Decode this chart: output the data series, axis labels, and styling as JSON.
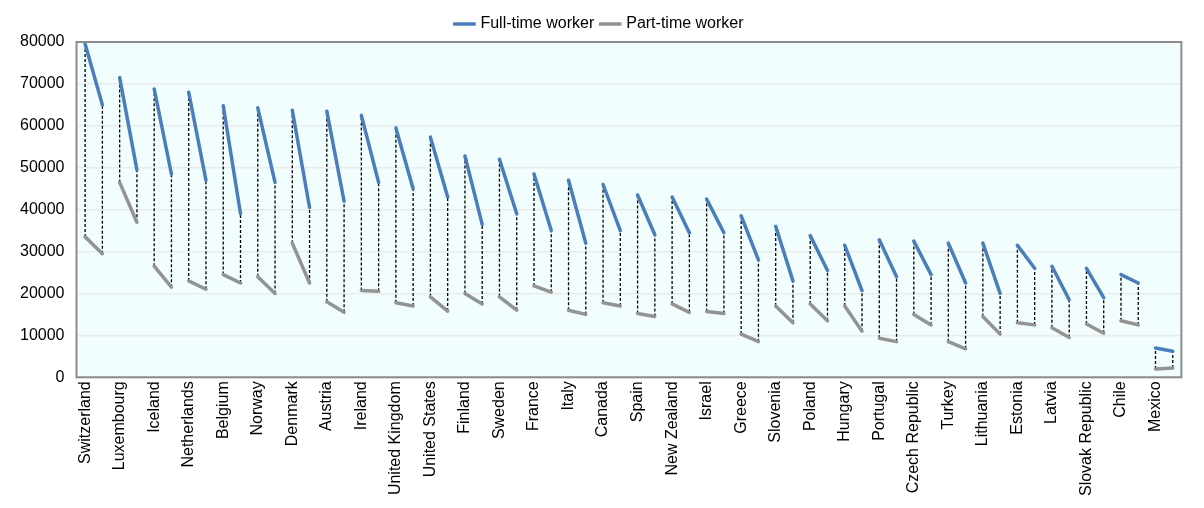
{
  "chart_data": {
    "type": "line",
    "categories": [
      "Switzerland",
      null,
      "Luxembourg",
      null,
      "Iceland",
      null,
      "Netherlands",
      null,
      "Belgium",
      null,
      "Norway",
      null,
      "Denmark",
      null,
      "Austria",
      null,
      "Ireland",
      null,
      "United Kingdom",
      null,
      "United States",
      null,
      "Finland",
      null,
      "Sweden",
      null,
      "France",
      null,
      "Italy",
      null,
      "Canada",
      null,
      "Spain",
      null,
      "New Zealand",
      null,
      "Israel",
      null,
      "Greece",
      null,
      "Slovenia",
      null,
      "Poland",
      null,
      "Hungary",
      null,
      "Portugal",
      null,
      "Czech Republic",
      null,
      "Turkey",
      null,
      "Lithuania",
      null,
      "Estonia",
      null,
      "Latvia",
      null,
      "Slovak Republic",
      null,
      "Chile",
      null,
      "Mexico",
      null
    ],
    "series": [
      {
        "name": "Full-time worker",
        "color": "#4a7ebb",
        "values": [
          79500,
          65000,
          71500,
          49500,
          68800,
          48500,
          68000,
          47000,
          64800,
          39000,
          64300,
          46500,
          63700,
          40500,
          63500,
          42000,
          62500,
          46500,
          59500,
          45000,
          57300,
          43000,
          52800,
          36500,
          52000,
          39000,
          48500,
          35000,
          47000,
          32000,
          46000,
          35000,
          43500,
          34000,
          43000,
          34500,
          42500,
          34500,
          38500,
          28000,
          36000,
          23000,
          33800,
          25500,
          31500,
          20700,
          32800,
          24000,
          32500,
          24500,
          32000,
          22500,
          32000,
          20000,
          31500,
          26000,
          26500,
          18500,
          26000,
          19000,
          24500,
          22500,
          7000,
          6200
        ],
        "errors": [
          [
            33500,
            79500
          ],
          [
            29500,
            65000
          ],
          [
            46500,
            71500
          ],
          [
            37000,
            49500
          ],
          [
            26500,
            68800
          ],
          [
            21500,
            48500
          ],
          [
            23000,
            68000
          ],
          [
            21000,
            47000
          ],
          [
            24500,
            64800
          ],
          [
            22500,
            39000
          ],
          [
            24000,
            64300
          ],
          [
            20000,
            46500
          ],
          [
            32000,
            63700
          ],
          [
            22500,
            40500
          ],
          [
            18000,
            63500
          ],
          [
            15500,
            42000
          ],
          [
            20700,
            62500
          ],
          [
            20500,
            46500
          ],
          [
            17800,
            59500
          ],
          [
            17000,
            45000
          ],
          [
            19200,
            57300
          ],
          [
            15800,
            43000
          ],
          [
            20000,
            52800
          ],
          [
            17500,
            36500
          ],
          [
            19200,
            52000
          ],
          [
            16000,
            39000
          ],
          [
            21800,
            48500
          ],
          [
            20300,
            35000
          ],
          [
            16000,
            47000
          ],
          [
            15000,
            32000
          ],
          [
            17800,
            46000
          ],
          [
            17000,
            35000
          ],
          [
            15200,
            43500
          ],
          [
            14500,
            34000
          ],
          [
            17500,
            43000
          ],
          [
            15500,
            34500
          ],
          [
            15700,
            42500
          ],
          [
            15200,
            34500
          ],
          [
            10300,
            38500
          ],
          [
            8500,
            28000
          ],
          [
            17000,
            36000
          ],
          [
            13000,
            23000
          ],
          [
            17500,
            33800
          ],
          [
            13500,
            25500
          ],
          [
            17000,
            31500
          ],
          [
            11000,
            20700
          ],
          [
            9300,
            32800
          ],
          [
            8500,
            24000
          ],
          [
            15000,
            32500
          ],
          [
            12500,
            24500
          ],
          [
            8500,
            32000
          ],
          [
            6800,
            22500
          ],
          [
            14500,
            32000
          ],
          [
            10300,
            20000
          ],
          [
            13000,
            31500
          ],
          [
            12500,
            26000
          ],
          [
            11800,
            26500
          ],
          [
            9500,
            18500
          ],
          [
            12700,
            26000
          ],
          [
            10500,
            19000
          ],
          [
            13500,
            24500
          ],
          [
            12500,
            22500
          ],
          [
            2000,
            7000
          ],
          [
            2200,
            6200
          ]
        ]
      },
      {
        "name": "Part-time worker",
        "color": "#939393",
        "values": [
          33500,
          29500,
          46500,
          37000,
          26500,
          21500,
          23000,
          21000,
          24500,
          22500,
          24000,
          20000,
          32000,
          22500,
          18000,
          15500,
          20700,
          20500,
          17800,
          17000,
          19200,
          15800,
          20000,
          17500,
          19200,
          16000,
          21800,
          20300,
          16000,
          15000,
          17800,
          17000,
          15200,
          14500,
          17500,
          15500,
          15700,
          15200,
          10300,
          8500,
          17000,
          13000,
          17500,
          13500,
          17000,
          11000,
          9300,
          8500,
          15000,
          12500,
          8500,
          6800,
          14500,
          10300,
          13000,
          12500,
          11800,
          9500,
          12700,
          10500,
          13500,
          12500,
          2000,
          2200
        ]
      }
    ],
    "ylim": [
      0,
      80000
    ],
    "yticks": [
      0,
      10000,
      20000,
      30000,
      40000,
      50000,
      60000,
      70000,
      80000
    ],
    "grid": "y",
    "legend": "top",
    "marker": "none",
    "line_style": "solid"
  }
}
